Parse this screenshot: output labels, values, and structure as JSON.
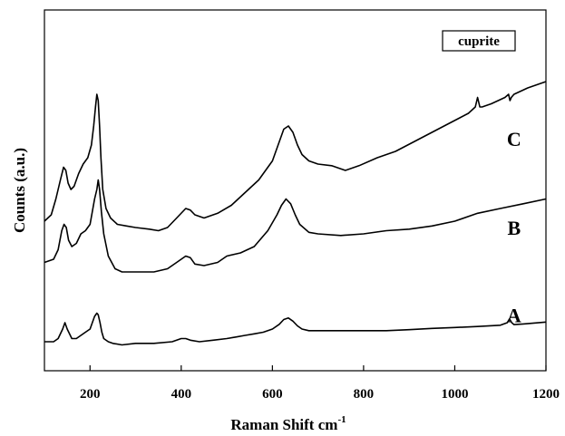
{
  "chart_data": {
    "type": "line",
    "title": "",
    "xlabel": "Raman Shift cm",
    "xlabel_superscript": "-1",
    "ylabel": "Counts (a.u.)",
    "xlim": [
      100,
      1200
    ],
    "xticks": [
      200,
      400,
      600,
      800,
      1000,
      1200
    ],
    "yticks_shown": false,
    "grid": false,
    "legend": {
      "text": "cuprite",
      "placement": "top-right"
    },
    "colors": {
      "line": "#000000",
      "axis": "#000000",
      "background": "#ffffff"
    },
    "series": [
      {
        "name": "A",
        "x": [
          100,
          120,
          130,
          140,
          145,
          150,
          160,
          170,
          180,
          190,
          200,
          205,
          210,
          215,
          218,
          222,
          226,
          230,
          240,
          250,
          270,
          300,
          340,
          380,
          400,
          410,
          420,
          440,
          470,
          500,
          520,
          540,
          560,
          580,
          600,
          615,
          625,
          635,
          645,
          655,
          665,
          680,
          700,
          750,
          800,
          850,
          900,
          950,
          1000,
          1050,
          1100,
          1115,
          1120,
          1125,
          1130,
          1150,
          1200
        ],
        "y": [
          0.02,
          0.02,
          0.03,
          0.06,
          0.08,
          0.06,
          0.03,
          0.03,
          0.04,
          0.05,
          0.06,
          0.08,
          0.1,
          0.11,
          0.105,
          0.08,
          0.05,
          0.03,
          0.02,
          0.015,
          0.01,
          0.015,
          0.015,
          0.02,
          0.03,
          0.03,
          0.025,
          0.02,
          0.025,
          0.03,
          0.035,
          0.04,
          0.045,
          0.05,
          0.06,
          0.075,
          0.09,
          0.095,
          0.085,
          0.07,
          0.06,
          0.055,
          0.055,
          0.055,
          0.055,
          0.055,
          0.058,
          0.062,
          0.065,
          0.068,
          0.072,
          0.08,
          0.092,
          0.08,
          0.074,
          0.076,
          0.082
        ]
      },
      {
        "name": "B",
        "x": [
          100,
          120,
          130,
          138,
          143,
          148,
          153,
          160,
          170,
          180,
          190,
          200,
          205,
          210,
          215,
          218,
          221,
          225,
          230,
          240,
          255,
          270,
          300,
          340,
          370,
          390,
          410,
          420,
          430,
          450,
          480,
          500,
          530,
          560,
          590,
          610,
          620,
          630,
          640,
          650,
          660,
          680,
          700,
          750,
          800,
          850,
          900,
          950,
          1000,
          1050,
          1100,
          1150,
          1200
        ],
        "y": [
          0.27,
          0.28,
          0.31,
          0.37,
          0.39,
          0.38,
          0.34,
          0.32,
          0.33,
          0.36,
          0.37,
          0.39,
          0.43,
          0.47,
          0.5,
          0.53,
          0.5,
          0.43,
          0.36,
          0.29,
          0.25,
          0.24,
          0.24,
          0.24,
          0.25,
          0.27,
          0.29,
          0.285,
          0.265,
          0.26,
          0.27,
          0.29,
          0.3,
          0.32,
          0.37,
          0.42,
          0.45,
          0.47,
          0.455,
          0.42,
          0.39,
          0.365,
          0.36,
          0.355,
          0.36,
          0.37,
          0.375,
          0.385,
          0.4,
          0.425,
          0.44,
          0.455,
          0.47
        ]
      },
      {
        "name": "C",
        "x": [
          100,
          115,
          125,
          135,
          142,
          147,
          152,
          158,
          165,
          175,
          185,
          195,
          203,
          208,
          212,
          215,
          218,
          221,
          224,
          228,
          235,
          245,
          260,
          280,
          300,
          330,
          350,
          370,
          390,
          410,
          420,
          430,
          450,
          480,
          510,
          540,
          570,
          600,
          615,
          625,
          635,
          645,
          655,
          665,
          680,
          700,
          730,
          760,
          790,
          830,
          870,
          910,
          950,
          990,
          1030,
          1045,
          1050,
          1055,
          1060,
          1080,
          1110,
          1118,
          1121,
          1124,
          1130,
          1160,
          1200
        ],
        "y": [
          0.4,
          0.42,
          0.47,
          0.53,
          0.57,
          0.56,
          0.52,
          0.5,
          0.51,
          0.55,
          0.58,
          0.6,
          0.64,
          0.7,
          0.76,
          0.8,
          0.78,
          0.7,
          0.6,
          0.5,
          0.44,
          0.41,
          0.39,
          0.385,
          0.38,
          0.375,
          0.37,
          0.38,
          0.41,
          0.44,
          0.435,
          0.42,
          0.41,
          0.425,
          0.45,
          0.49,
          0.53,
          0.59,
          0.65,
          0.69,
          0.7,
          0.68,
          0.64,
          0.61,
          0.59,
          0.58,
          0.575,
          0.56,
          0.575,
          0.6,
          0.62,
          0.65,
          0.68,
          0.71,
          0.74,
          0.76,
          0.79,
          0.76,
          0.76,
          0.77,
          0.79,
          0.8,
          0.78,
          0.79,
          0.8,
          0.82,
          0.84
        ]
      }
    ]
  }
}
